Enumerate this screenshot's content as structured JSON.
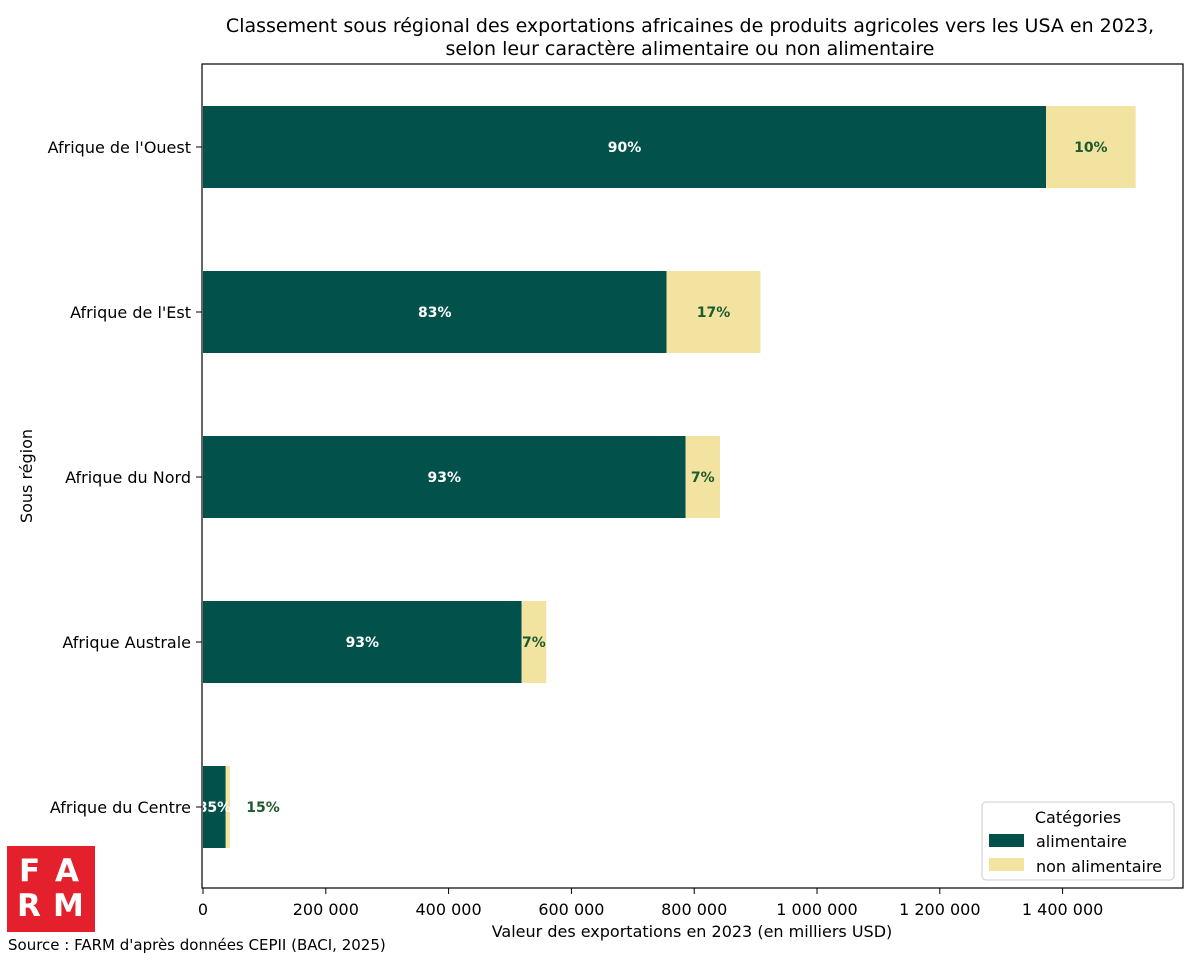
{
  "chart_data": {
    "type": "bar",
    "orientation": "horizontal",
    "stacked": true,
    "title": "Classement sous régional des exportations africaines de produits agricoles vers les USA en 2023,",
    "subtitle": "selon leur caractère alimentaire ou non alimentaire",
    "xlabel": "Valeur des exportations en 2023 (en milliers USD)",
    "ylabel": "Sous région",
    "xlim": [
      0,
      1600000
    ],
    "xticks": [
      0,
      200000,
      400000,
      600000,
      800000,
      1000000,
      1200000,
      1400000
    ],
    "xtick_labels": [
      "0",
      "200 000",
      "400 000",
      "600 000",
      "800 000",
      "1 000 000",
      "1 200 000",
      "1 400 000"
    ],
    "categories": [
      "Afrique de l'Ouest",
      "Afrique de l'Est",
      "Afrique du Nord",
      "Afrique Australe",
      "Afrique du Centre"
    ],
    "series": [
      {
        "name": "alimentaire",
        "color": "#02524b",
        "values": [
          1373000,
          755000,
          786000,
          519000,
          37000
        ],
        "labels": [
          "90%",
          "83%",
          "93%",
          "93%",
          "85%"
        ]
      },
      {
        "name": "non alimentaire",
        "color": "#f3e3a1",
        "values": [
          146000,
          153000,
          56000,
          40000,
          7000
        ],
        "labels": [
          "10%",
          "17%",
          "7%",
          "7%",
          "15%"
        ]
      }
    ],
    "legend": {
      "title": "Catégories",
      "position": "lower-right"
    },
    "grid": false
  },
  "source": "Source : FARM d'après données CEPII (BACI, 2025)",
  "logo": {
    "text": "FARM",
    "color": "#e3202b"
  }
}
